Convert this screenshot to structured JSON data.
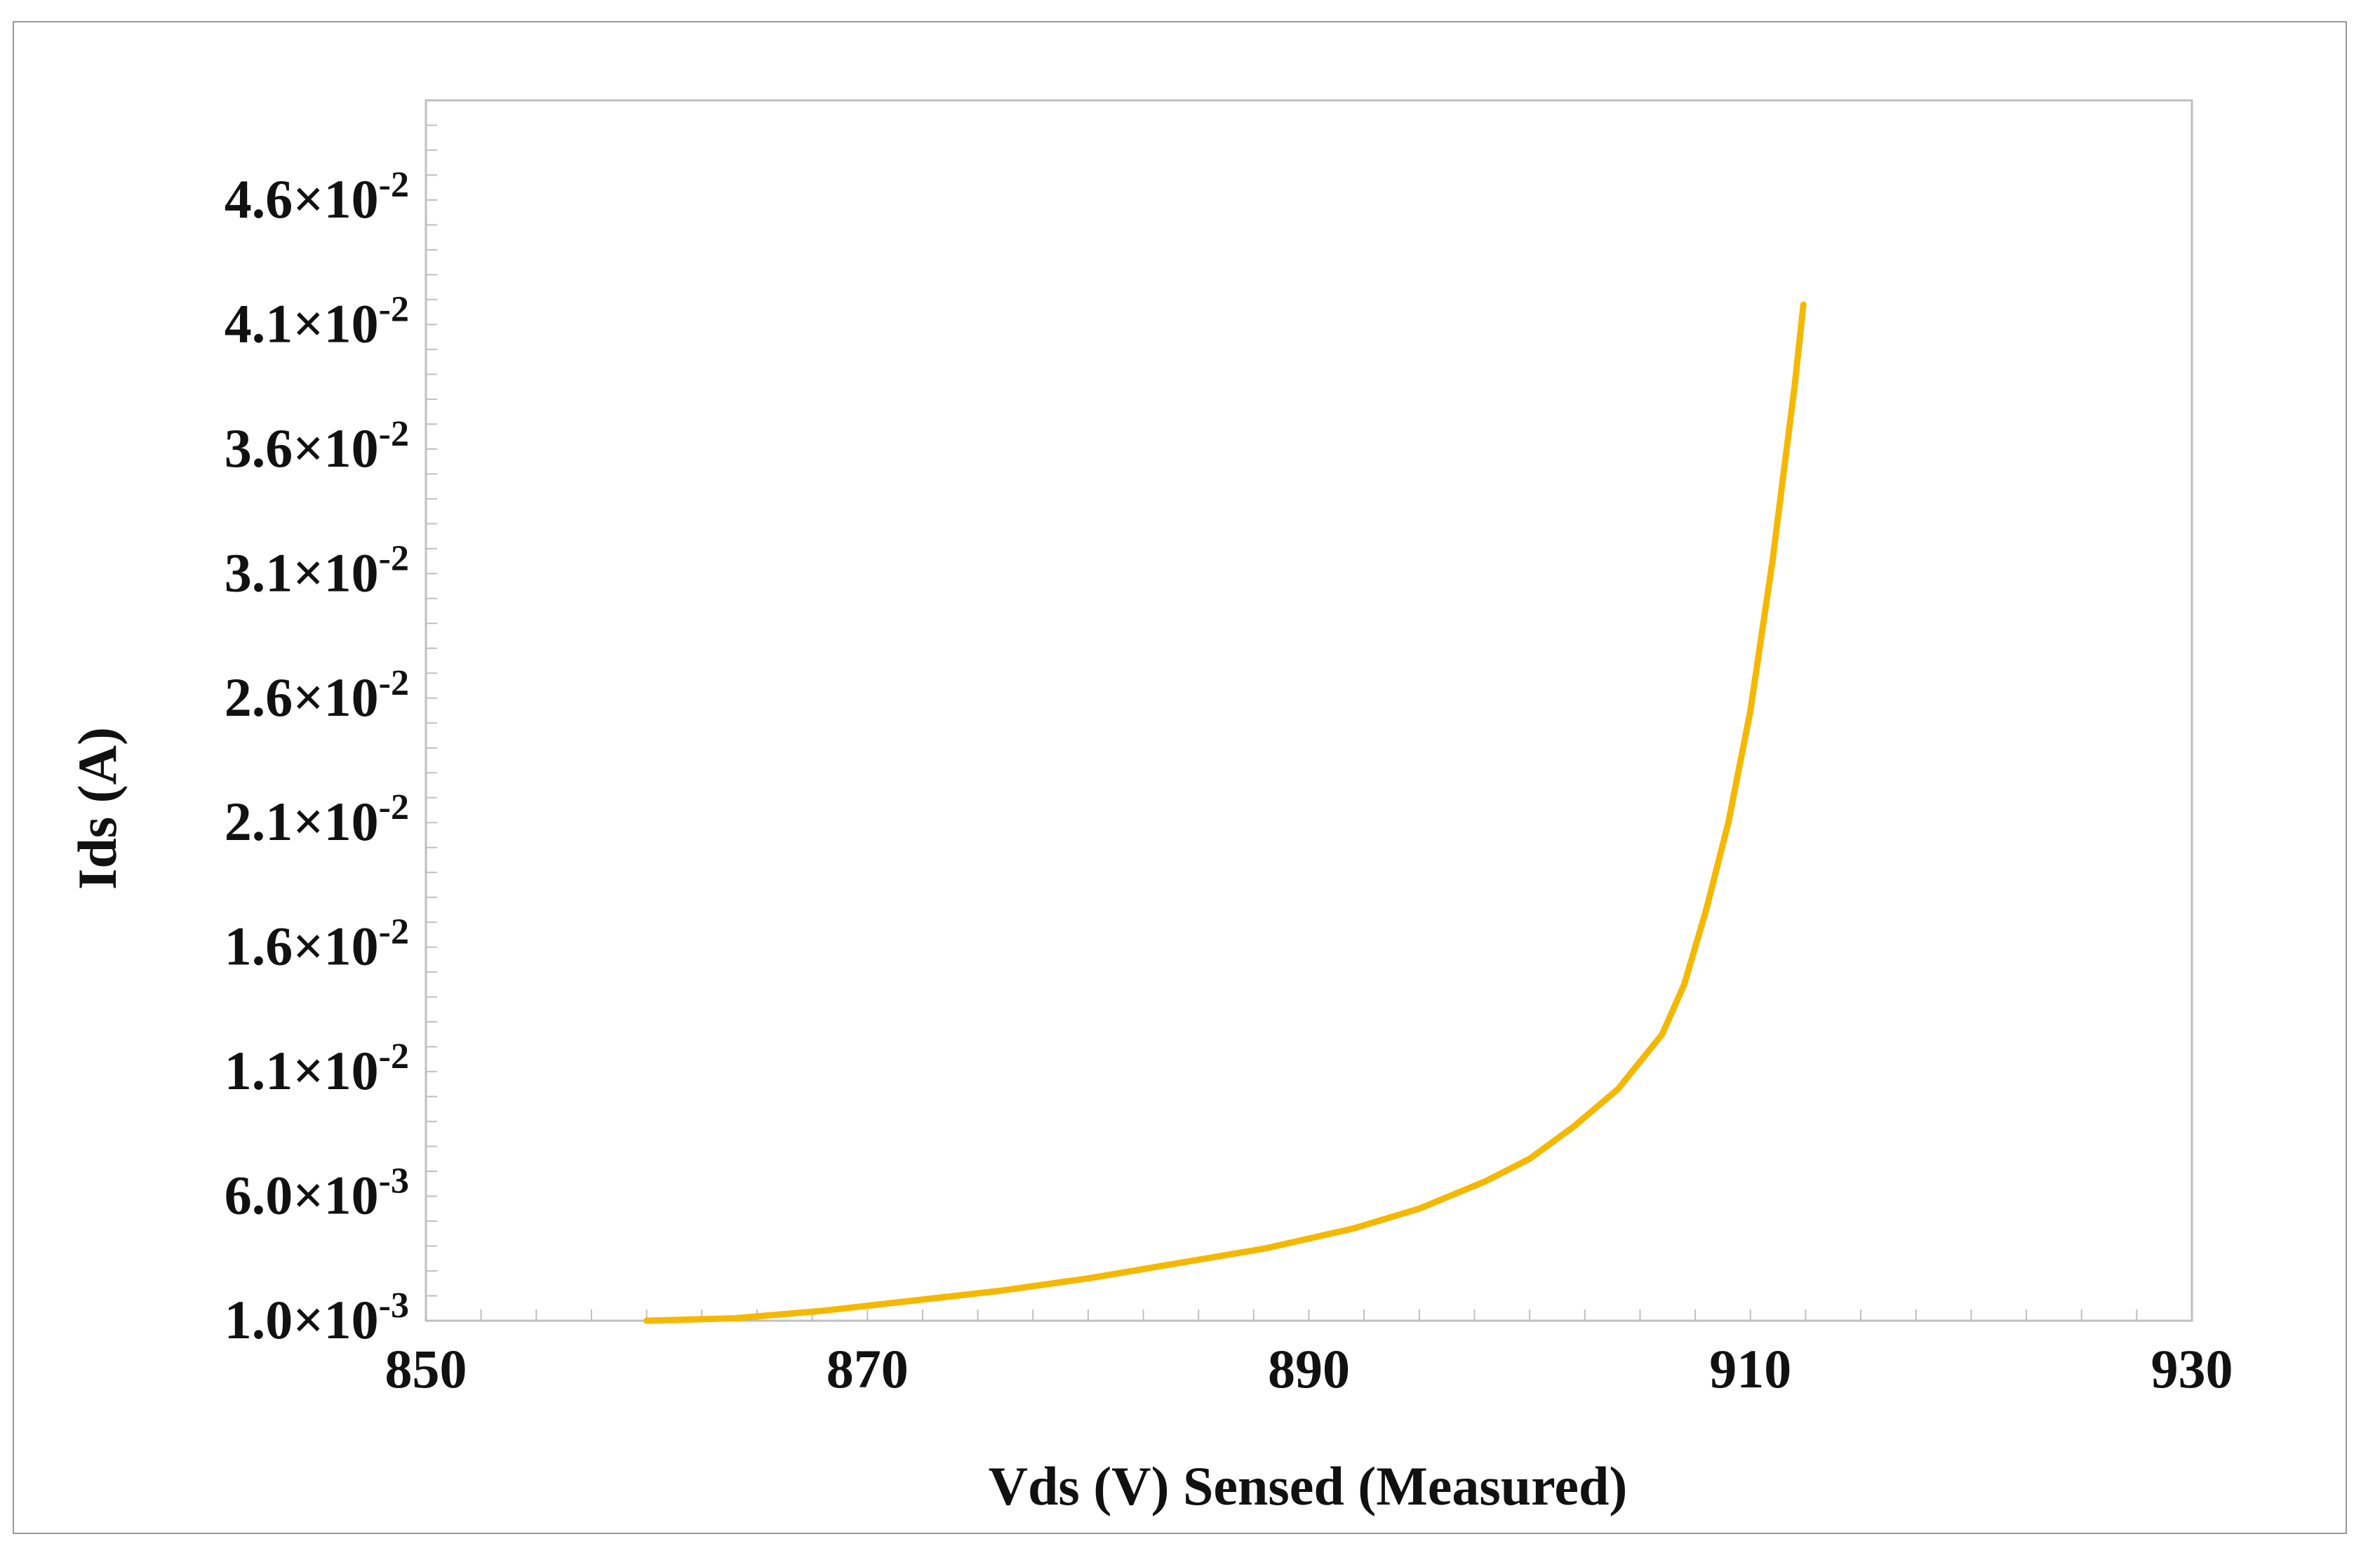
{
  "chart_data": {
    "type": "line",
    "title": "",
    "xlabel": "Vds (V) Sensed (Measured)",
    "ylabel": "Ids (A)",
    "xlim": [
      850,
      930
    ],
    "ylim": [
      0.001,
      0.05
    ],
    "x_ticks": [
      850,
      870,
      890,
      910,
      930
    ],
    "x_tick_labels": [
      "850",
      "870",
      "890",
      "910",
      "930"
    ],
    "y_ticks": [
      0.001,
      0.006,
      0.011,
      0.016,
      0.021,
      0.026,
      0.031,
      0.036,
      0.041,
      0.046
    ],
    "y_tick_labels": [
      {
        "mantissa": "1.0",
        "exponent": "-3"
      },
      {
        "mantissa": "6.0",
        "exponent": "-3"
      },
      {
        "mantissa": "1.1",
        "exponent": "-2"
      },
      {
        "mantissa": "1.6",
        "exponent": "-2"
      },
      {
        "mantissa": "2.1",
        "exponent": "-2"
      },
      {
        "mantissa": "2.6",
        "exponent": "-2"
      },
      {
        "mantissa": "3.1",
        "exponent": "-2"
      },
      {
        "mantissa": "3.6",
        "exponent": "-2"
      },
      {
        "mantissa": "4.1",
        "exponent": "-2"
      },
      {
        "mantissa": "4.6",
        "exponent": "-2"
      }
    ],
    "grid": false,
    "series": [
      {
        "name": "Ids",
        "color": "#f5b800",
        "x": [
          860,
          864,
          868,
          872,
          876,
          880,
          884,
          888,
          892,
          895,
          898,
          900,
          902,
          904,
          906,
          907,
          908,
          909,
          910,
          910.5,
          911,
          911.5,
          912,
          912.4
        ],
        "y": [
          0.001,
          0.0011,
          0.0014,
          0.0018,
          0.0022,
          0.0027,
          0.0033,
          0.0039,
          0.0047,
          0.0055,
          0.0066,
          0.0075,
          0.0088,
          0.0103,
          0.0125,
          0.0145,
          0.0175,
          0.021,
          0.0255,
          0.0285,
          0.0315,
          0.035,
          0.0385,
          0.0418
        ]
      }
    ]
  }
}
